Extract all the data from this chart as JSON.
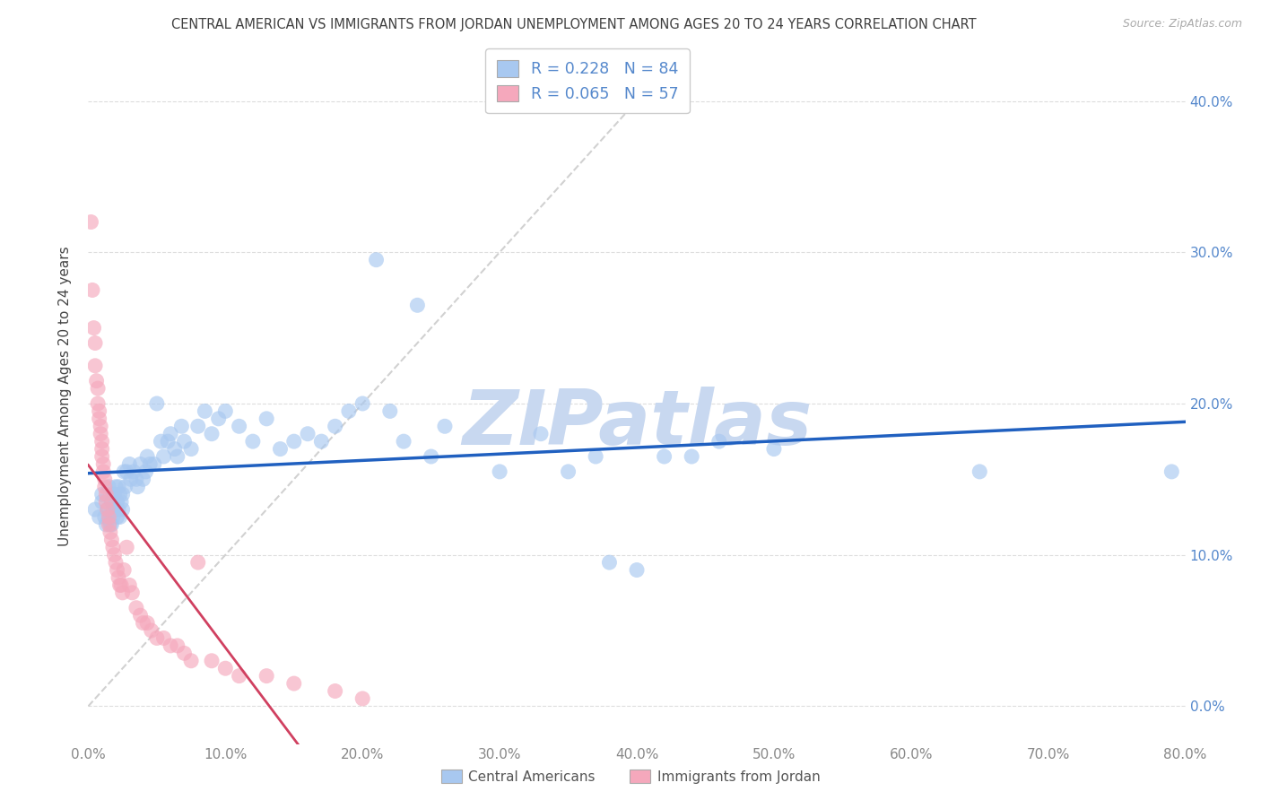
{
  "title": "CENTRAL AMERICAN VS IMMIGRANTS FROM JORDAN UNEMPLOYMENT AMONG AGES 20 TO 24 YEARS CORRELATION CHART",
  "source": "Source: ZipAtlas.com",
  "ylabel": "Unemployment Among Ages 20 to 24 years",
  "xlim": [
    0.0,
    0.8
  ],
  "ylim": [
    -0.025,
    0.435
  ],
  "ytick_vals": [
    0.0,
    0.1,
    0.2,
    0.3,
    0.4
  ],
  "xtick_vals": [
    0.0,
    0.1,
    0.2,
    0.3,
    0.4,
    0.5,
    0.6,
    0.7,
    0.8
  ],
  "blue_R": 0.228,
  "blue_N": 84,
  "pink_R": 0.065,
  "pink_N": 57,
  "blue_scatter_color": "#a8c8f0",
  "pink_scatter_color": "#f5a8bc",
  "blue_line_color": "#2060c0",
  "pink_line_color": "#d04060",
  "diag_color": "#cccccc",
  "tick_label_color_right": "#5588cc",
  "legend_label_blue": "Central Americans",
  "legend_label_pink": "Immigrants from Jordan",
  "background_color": "#ffffff",
  "grid_color": "#dddddd",
  "title_color": "#404040",
  "watermark_text": "ZIPatlas",
  "watermark_color": "#c8d8f0",
  "source_color": "#aaaaaa",
  "axis_tick_color": "#888888",
  "blue_x": [
    0.005,
    0.008,
    0.01,
    0.01,
    0.012,
    0.013,
    0.014,
    0.015,
    0.015,
    0.016,
    0.017,
    0.017,
    0.018,
    0.018,
    0.018,
    0.019,
    0.02,
    0.02,
    0.021,
    0.021,
    0.022,
    0.022,
    0.023,
    0.023,
    0.024,
    0.025,
    0.025,
    0.026,
    0.027,
    0.028,
    0.03,
    0.031,
    0.033,
    0.035,
    0.036,
    0.038,
    0.04,
    0.042,
    0.043,
    0.045,
    0.048,
    0.05,
    0.053,
    0.055,
    0.058,
    0.06,
    0.063,
    0.065,
    0.068,
    0.07,
    0.075,
    0.08,
    0.085,
    0.09,
    0.095,
    0.1,
    0.11,
    0.12,
    0.13,
    0.14,
    0.15,
    0.16,
    0.17,
    0.18,
    0.19,
    0.2,
    0.21,
    0.22,
    0.23,
    0.24,
    0.25,
    0.26,
    0.3,
    0.33,
    0.35,
    0.37,
    0.38,
    0.4,
    0.42,
    0.44,
    0.46,
    0.5,
    0.65,
    0.79
  ],
  "blue_y": [
    0.13,
    0.125,
    0.14,
    0.135,
    0.125,
    0.12,
    0.13,
    0.145,
    0.125,
    0.12,
    0.135,
    0.12,
    0.14,
    0.13,
    0.125,
    0.14,
    0.13,
    0.145,
    0.125,
    0.135,
    0.13,
    0.145,
    0.125,
    0.14,
    0.135,
    0.14,
    0.13,
    0.155,
    0.145,
    0.155,
    0.16,
    0.15,
    0.155,
    0.15,
    0.145,
    0.16,
    0.15,
    0.155,
    0.165,
    0.16,
    0.16,
    0.2,
    0.175,
    0.165,
    0.175,
    0.18,
    0.17,
    0.165,
    0.185,
    0.175,
    0.17,
    0.185,
    0.195,
    0.18,
    0.19,
    0.195,
    0.185,
    0.175,
    0.19,
    0.17,
    0.175,
    0.18,
    0.175,
    0.185,
    0.195,
    0.2,
    0.295,
    0.195,
    0.175,
    0.265,
    0.165,
    0.185,
    0.155,
    0.18,
    0.155,
    0.165,
    0.095,
    0.09,
    0.165,
    0.165,
    0.175,
    0.17,
    0.155,
    0.155
  ],
  "pink_x": [
    0.002,
    0.003,
    0.004,
    0.005,
    0.005,
    0.006,
    0.007,
    0.007,
    0.008,
    0.008,
    0.009,
    0.009,
    0.01,
    0.01,
    0.01,
    0.011,
    0.011,
    0.012,
    0.012,
    0.013,
    0.013,
    0.014,
    0.015,
    0.015,
    0.016,
    0.017,
    0.018,
    0.019,
    0.02,
    0.021,
    0.022,
    0.023,
    0.024,
    0.025,
    0.026,
    0.028,
    0.03,
    0.032,
    0.035,
    0.038,
    0.04,
    0.043,
    0.046,
    0.05,
    0.055,
    0.06,
    0.065,
    0.07,
    0.075,
    0.08,
    0.09,
    0.1,
    0.11,
    0.13,
    0.15,
    0.18,
    0.2
  ],
  "pink_y": [
    0.32,
    0.275,
    0.25,
    0.24,
    0.225,
    0.215,
    0.21,
    0.2,
    0.195,
    0.19,
    0.185,
    0.18,
    0.175,
    0.17,
    0.165,
    0.16,
    0.155,
    0.15,
    0.145,
    0.14,
    0.135,
    0.13,
    0.125,
    0.12,
    0.115,
    0.11,
    0.105,
    0.1,
    0.095,
    0.09,
    0.085,
    0.08,
    0.08,
    0.075,
    0.09,
    0.105,
    0.08,
    0.075,
    0.065,
    0.06,
    0.055,
    0.055,
    0.05,
    0.045,
    0.045,
    0.04,
    0.04,
    0.035,
    0.03,
    0.095,
    0.03,
    0.025,
    0.02,
    0.02,
    0.015,
    0.01,
    0.005
  ]
}
